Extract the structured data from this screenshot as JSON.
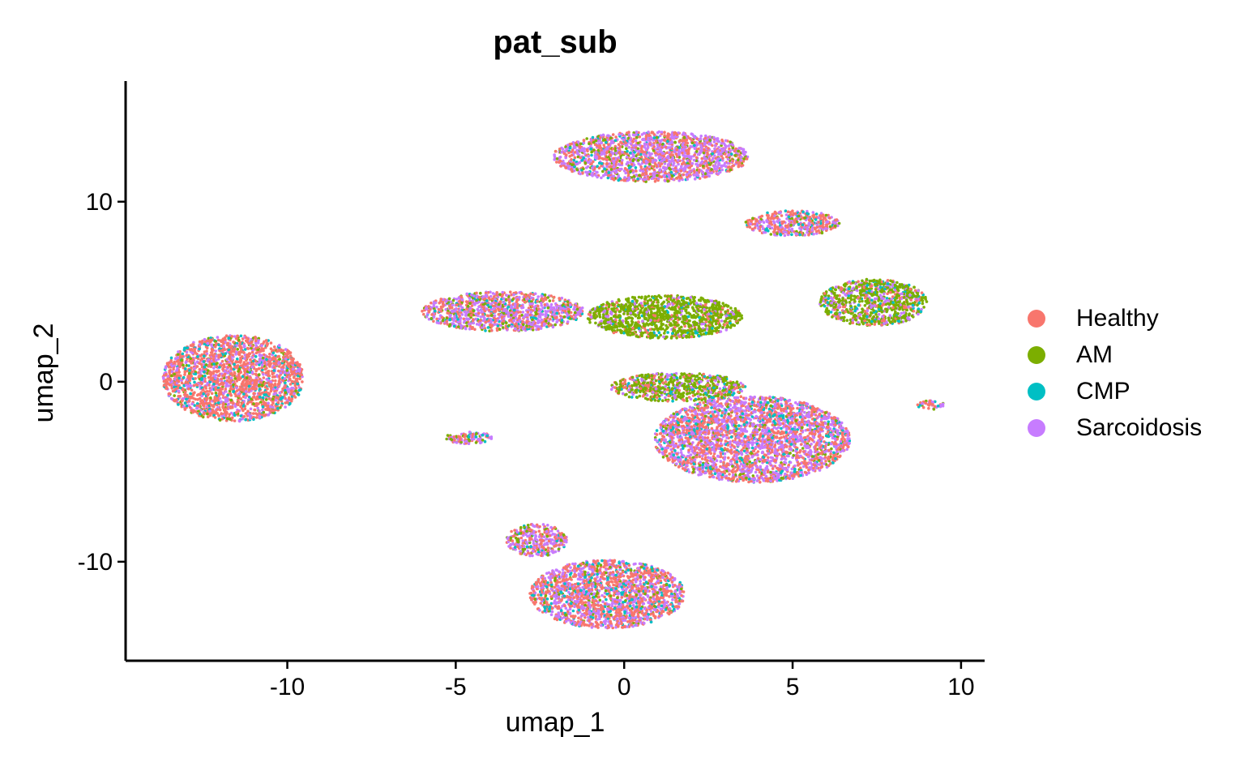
{
  "chart_data": {
    "type": "scatter",
    "title": "pat_sub",
    "xlabel": "umap_1",
    "ylabel": "umap_2",
    "xlim": [
      -14.8,
      10.7
    ],
    "ylim": [
      -15.5,
      16.7
    ],
    "xticks": [
      -10,
      -5,
      0,
      5,
      10
    ],
    "xtick_labels": [
      "-10",
      "-5",
      "0",
      "5",
      "10"
    ],
    "yticks": [
      -10,
      0,
      10
    ],
    "ytick_labels": [
      "-10",
      "0",
      "10"
    ],
    "grid": false,
    "legend_position": "right",
    "series": [
      {
        "name": "Healthy",
        "color": "#F8766D"
      },
      {
        "name": "AM",
        "color": "#7CAE00"
      },
      {
        "name": "CMP",
        "color": "#00BFC4"
      },
      {
        "name": "Sarcoidosis",
        "color": "#C77CFF"
      }
    ],
    "clusters": [
      {
        "cx": -11.6,
        "cy": 0.2,
        "rx": 2.1,
        "ry": 2.4,
        "mix": [
          0.62,
          0.08,
          0.12,
          0.18
        ]
      },
      {
        "cx": -4.6,
        "cy": -3.1,
        "rx": 0.7,
        "ry": 0.35,
        "mix": [
          0.25,
          0.15,
          0.1,
          0.5
        ]
      },
      {
        "cx": -3.6,
        "cy": 3.9,
        "rx": 2.4,
        "ry": 1.1,
        "mix": [
          0.35,
          0.15,
          0.1,
          0.4
        ]
      },
      {
        "cx": 1.2,
        "cy": 3.6,
        "rx": 2.3,
        "ry": 1.2,
        "mix": [
          0.1,
          0.75,
          0.05,
          0.1
        ]
      },
      {
        "cx": 0.8,
        "cy": 12.5,
        "rx": 2.9,
        "ry": 1.4,
        "mix": [
          0.35,
          0.1,
          0.05,
          0.5
        ]
      },
      {
        "cx": 5.0,
        "cy": 8.8,
        "rx": 1.4,
        "ry": 0.7,
        "mix": [
          0.45,
          0.1,
          0.1,
          0.35
        ]
      },
      {
        "cx": 7.4,
        "cy": 4.4,
        "rx": 1.6,
        "ry": 1.3,
        "mix": [
          0.15,
          0.55,
          0.1,
          0.2
        ]
      },
      {
        "cx": 3.8,
        "cy": -3.2,
        "rx": 2.9,
        "ry": 2.4,
        "mix": [
          0.42,
          0.06,
          0.1,
          0.42
        ]
      },
      {
        "cx": 1.6,
        "cy": -0.3,
        "rx": 2.0,
        "ry": 0.8,
        "mix": [
          0.2,
          0.55,
          0.1,
          0.15
        ]
      },
      {
        "cx": -0.5,
        "cy": -11.8,
        "rx": 2.3,
        "ry": 1.9,
        "mix": [
          0.45,
          0.08,
          0.12,
          0.35
        ]
      },
      {
        "cx": -2.6,
        "cy": -8.8,
        "rx": 0.9,
        "ry": 0.9,
        "mix": [
          0.35,
          0.15,
          0.05,
          0.45
        ]
      },
      {
        "cx": 9.1,
        "cy": -1.3,
        "rx": 0.4,
        "ry": 0.25,
        "mix": [
          0.4,
          0.1,
          0.1,
          0.4
        ]
      }
    ]
  }
}
